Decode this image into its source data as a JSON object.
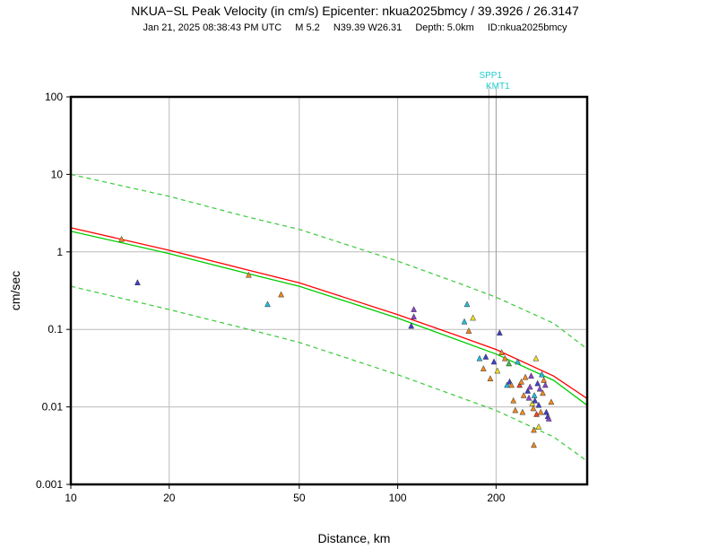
{
  "header": {
    "title": "NKUA−SL Peak Velocity (in cm/s) Epicenter: nkua2025bmcy / 39.3926 / 26.3147",
    "date": "Jan 21, 2025 08:38:43 PM UTC",
    "magnitude": "M 5.2",
    "location": "N39.39 W26.31",
    "depth": "Depth: 5.0km",
    "event_id": "ID:nkua2025bmcy"
  },
  "chart_data": {
    "type": "scatter",
    "title": "NKUA−SL Peak Velocity (in cm/s) Epicenter: nkua2025bmcy / 39.3926 / 26.3147",
    "xlabel": "Distance, km",
    "ylabel": "cm/sec",
    "xscale": "log",
    "yscale": "log",
    "xlim": [
      10,
      380
    ],
    "ylim": [
      0.001,
      100
    ],
    "grid": true,
    "x_ticks": [
      10,
      20,
      50,
      100,
      200
    ],
    "x_tick_labels": [
      "10",
      "20",
      "50",
      "100",
      "200"
    ],
    "y_ticks": [
      0.001,
      0.01,
      0.1,
      1,
      10,
      100
    ],
    "y_tick_labels": [
      "0.001",
      "0.01",
      "0.1",
      "1",
      "10",
      "100"
    ],
    "curve_colors": {
      "red": "#ff0000",
      "green": "#00cc00",
      "green_dashed": "#44cc44"
    },
    "curves": [
      {
        "name": "red-curve",
        "style": "solid",
        "color": "red",
        "x": [
          10,
          20,
          35,
          50,
          100,
          150,
          200,
          300,
          380
        ],
        "y": [
          2.05,
          1.05,
          0.58,
          0.4,
          0.155,
          0.085,
          0.055,
          0.025,
          0.0128
        ]
      },
      {
        "name": "green-curve",
        "style": "solid",
        "color": "green",
        "x": [
          10,
          20,
          35,
          50,
          100,
          150,
          200,
          300,
          380
        ],
        "y": [
          1.85,
          0.95,
          0.52,
          0.36,
          0.14,
          0.075,
          0.048,
          0.022,
          0.0105
        ]
      },
      {
        "name": "green-upper-curve",
        "style": "dashed",
        "color": "green_dashed",
        "x": [
          10,
          20,
          35,
          50,
          100,
          150,
          200,
          300,
          380
        ],
        "y": [
          10,
          5.2,
          2.8,
          1.95,
          0.76,
          0.41,
          0.26,
          0.12,
          0.056
        ]
      },
      {
        "name": "green-lower-curve",
        "style": "dashed",
        "color": "green_dashed",
        "x": [
          10,
          20,
          35,
          50,
          100,
          150,
          200,
          300,
          380
        ],
        "y": [
          0.36,
          0.18,
          0.1,
          0.068,
          0.026,
          0.014,
          0.009,
          0.0041,
          0.002
        ]
      }
    ],
    "station_colors": {
      "blue": "#4040cc",
      "cyan": "#22bbdd",
      "orange": "#ee8822",
      "yellow": "#eedd22",
      "violet": "#8844cc",
      "red": "#ee4422",
      "green": "#44bb44"
    },
    "stations": [
      {
        "x": 14.3,
        "y": 1.45,
        "c": "orange"
      },
      {
        "x": 16,
        "y": 0.4,
        "c": "blue"
      },
      {
        "x": 35,
        "y": 0.5,
        "c": "orange"
      },
      {
        "x": 40,
        "y": 0.21,
        "c": "cyan"
      },
      {
        "x": 44,
        "y": 0.28,
        "c": "orange"
      },
      {
        "x": 110,
        "y": 0.11,
        "c": "blue"
      },
      {
        "x": 112,
        "y": 0.18,
        "c": "violet"
      },
      {
        "x": 112,
        "y": 0.145,
        "c": "violet"
      },
      {
        "x": 160,
        "y": 0.125,
        "c": "cyan"
      },
      {
        "x": 163,
        "y": 0.21,
        "c": "cyan"
      },
      {
        "x": 165,
        "y": 0.095,
        "c": "orange"
      },
      {
        "x": 170,
        "y": 0.14,
        "c": "yellow"
      },
      {
        "x": 178,
        "y": 0.042,
        "c": "cyan"
      },
      {
        "x": 183,
        "y": 0.031,
        "c": "orange"
      },
      {
        "x": 186,
        "y": 0.044,
        "c": "blue"
      },
      {
        "x": 192,
        "y": 0.023,
        "c": "orange"
      },
      {
        "x": 197,
        "y": 0.038,
        "c": "blue"
      },
      {
        "x": 202,
        "y": 0.029,
        "c": "yellow"
      },
      {
        "x": 205,
        "y": 0.09,
        "c": "blue"
      },
      {
        "x": 208,
        "y": 0.05,
        "c": "orange"
      },
      {
        "x": 213,
        "y": 0.042,
        "c": "orange"
      },
      {
        "x": 216,
        "y": 0.019,
        "c": "cyan"
      },
      {
        "x": 219,
        "y": 0.036,
        "c": "green"
      },
      {
        "x": 220,
        "y": 0.021,
        "c": "blue"
      },
      {
        "x": 223,
        "y": 0.019,
        "c": "orange"
      },
      {
        "x": 226,
        "y": 0.012,
        "c": "orange"
      },
      {
        "x": 229,
        "y": 0.009,
        "c": "orange"
      },
      {
        "x": 233,
        "y": 0.038,
        "c": "cyan"
      },
      {
        "x": 236,
        "y": 0.019,
        "c": "red"
      },
      {
        "x": 239,
        "y": 0.021,
        "c": "orange"
      },
      {
        "x": 241,
        "y": 0.0085,
        "c": "orange"
      },
      {
        "x": 243,
        "y": 0.014,
        "c": "orange"
      },
      {
        "x": 246,
        "y": 0.024,
        "c": "orange"
      },
      {
        "x": 250,
        "y": 0.016,
        "c": "blue"
      },
      {
        "x": 252,
        "y": 0.013,
        "c": "violet"
      },
      {
        "x": 254,
        "y": 0.018,
        "c": "violet"
      },
      {
        "x": 256,
        "y": 0.025,
        "c": "violet"
      },
      {
        "x": 258,
        "y": 0.011,
        "c": "yellow"
      },
      {
        "x": 260,
        "y": 0.0095,
        "c": "orange"
      },
      {
        "x": 262,
        "y": 0.014,
        "c": "cyan"
      },
      {
        "x": 263,
        "y": 0.012,
        "c": "blue"
      },
      {
        "x": 265,
        "y": 0.042,
        "c": "yellow"
      },
      {
        "x": 266,
        "y": 0.008,
        "c": "red"
      },
      {
        "x": 268,
        "y": 0.02,
        "c": "blue"
      },
      {
        "x": 270,
        "y": 0.0105,
        "c": "blue"
      },
      {
        "x": 272,
        "y": 0.017,
        "c": "violet"
      },
      {
        "x": 274,
        "y": 0.0085,
        "c": "orange"
      },
      {
        "x": 276,
        "y": 0.026,
        "c": "cyan"
      },
      {
        "x": 278,
        "y": 0.015,
        "c": "orange"
      },
      {
        "x": 280,
        "y": 0.022,
        "c": "orange"
      },
      {
        "x": 283,
        "y": 0.019,
        "c": "violet"
      },
      {
        "x": 285,
        "y": 0.0085,
        "c": "blue"
      },
      {
        "x": 288,
        "y": 0.0075,
        "c": "blue"
      },
      {
        "x": 290,
        "y": 0.007,
        "c": "violet"
      },
      {
        "x": 295,
        "y": 0.0115,
        "c": "orange"
      },
      {
        "x": 270,
        "y": 0.0055,
        "c": "yellow"
      },
      {
        "x": 261,
        "y": 0.005,
        "c": "orange"
      },
      {
        "x": 261,
        "y": 0.0032,
        "c": "orange"
      }
    ],
    "annotations": [
      {
        "label": "SPP1",
        "x": 190,
        "color": "#22cccc"
      },
      {
        "label": "KMT1",
        "x": 200,
        "color": "#22cccc"
      }
    ]
  }
}
